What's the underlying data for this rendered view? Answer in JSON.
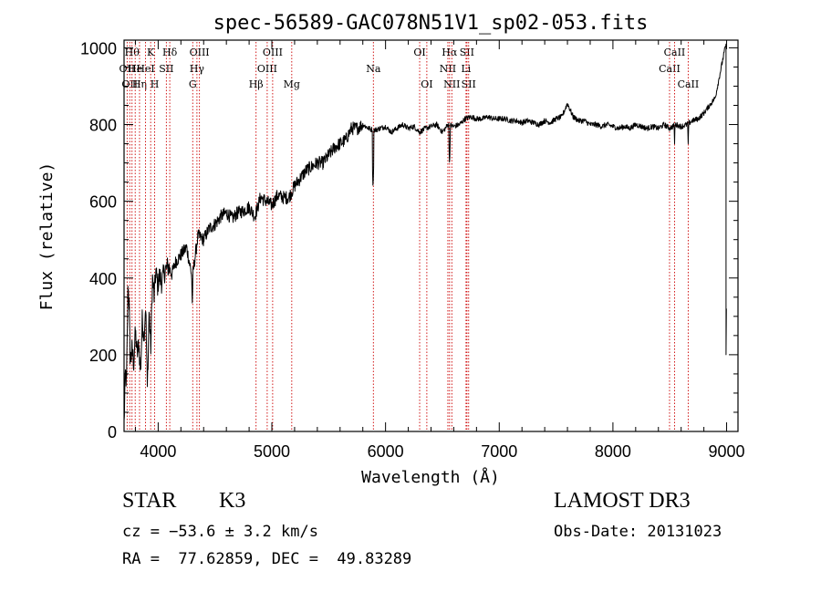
{
  "chart_data": {
    "type": "line",
    "title": "spec-56589-GAC078N51V1_sp02-053.fits",
    "xlabel": "Wavelength (Å)",
    "ylabel": "Flux (relative)",
    "xlim": [
      3700,
      9100
    ],
    "ylim": [
      0,
      1020
    ],
    "xticks": [
      4000,
      5000,
      6000,
      7000,
      8000,
      9000
    ],
    "yticks": [
      0,
      200,
      400,
      600,
      800,
      1000
    ],
    "series": [
      {
        "name": "spectrum",
        "x": [
          3700,
          3712,
          3722,
          3735,
          3745,
          3752,
          3760,
          3770,
          3785,
          3800,
          3815,
          3830,
          3845,
          3860,
          3875,
          3890,
          3905,
          3920,
          3935,
          3950,
          3965,
          3980,
          3995,
          4010,
          4030,
          4060,
          4090,
          4120,
          4150,
          4200,
          4250,
          4300,
          4350,
          4400,
          4450,
          4500,
          4550,
          4600,
          4650,
          4700,
          4750,
          4800,
          4850,
          4900,
          4950,
          5000,
          5050,
          5100,
          5150,
          5200,
          5250,
          5300,
          5350,
          5400,
          5450,
          5500,
          5550,
          5600,
          5650,
          5700,
          5750,
          5800,
          5850,
          5900,
          5950,
          6000,
          6050,
          6100,
          6150,
          6200,
          6250,
          6300,
          6350,
          6400,
          6450,
          6500,
          6550,
          6600,
          6650,
          6700,
          6750,
          6800,
          6850,
          6900,
          6950,
          7000,
          7050,
          7100,
          7150,
          7200,
          7250,
          7300,
          7350,
          7400,
          7450,
          7500,
          7550,
          7600,
          7650,
          7700,
          7750,
          7800,
          7850,
          7900,
          7950,
          8000,
          8050,
          8100,
          8150,
          8200,
          8250,
          8300,
          8350,
          8400,
          8450,
          8500,
          8550,
          8600,
          8650,
          8700,
          8750,
          8800,
          8850,
          8900,
          8920,
          8940,
          8960,
          8980,
          8995
        ],
        "y": [
          20,
          150,
          130,
          380,
          330,
          200,
          190,
          215,
          180,
          260,
          200,
          230,
          150,
          290,
          250,
          330,
          110,
          310,
          220,
          400,
          350,
          420,
          380,
          405,
          390,
          420,
          430,
          410,
          440,
          460,
          480,
          400,
          510,
          500,
          530,
          540,
          560,
          570,
          555,
          570,
          575,
          585,
          560,
          610,
          600,
          590,
          615,
          610,
          610,
          640,
          660,
          680,
          690,
          700,
          700,
          720,
          740,
          750,
          760,
          790,
          790,
          800,
          790,
          785,
          790,
          795,
          780,
          790,
          800,
          790,
          795,
          780,
          790,
          795,
          800,
          780,
          800,
          795,
          800,
          815,
          820,
          815,
          815,
          820,
          815,
          815,
          815,
          810,
          810,
          805,
          810,
          805,
          800,
          810,
          805,
          815,
          820,
          855,
          820,
          810,
          810,
          800,
          800,
          795,
          800,
          795,
          790,
          795,
          790,
          800,
          795,
          790,
          795,
          790,
          800,
          790,
          800,
          795,
          800,
          810,
          815,
          830,
          850,
          870,
          900,
          930,
          960,
          990,
          1010
        ]
      }
    ],
    "absorption_dips": [
      {
        "x": 5890,
        "y": 630
      },
      {
        "x": 6563,
        "y": 690
      },
      {
        "x": 4300,
        "y": 335
      },
      {
        "x": 8542,
        "y": 750
      },
      {
        "x": 8662,
        "y": 750
      }
    ],
    "line_markers": [
      {
        "x": 3727,
        "label": "OII",
        "row": 2
      },
      {
        "x": 3750,
        "label": "OII",
        "row": 3
      },
      {
        "x": 3770,
        "label": "Hθ",
        "row": 1
      },
      {
        "x": 3798,
        "label": "He",
        "row": 2
      },
      {
        "x": 3836,
        "label": "Hη",
        "row": 3
      },
      {
        "x": 3889,
        "label": "HeI",
        "row": 2
      },
      {
        "x": 3934,
        "label": "K",
        "row": 1
      },
      {
        "x": 3969,
        "label": "H",
        "row": 3
      },
      {
        "x": 4072,
        "label": "SII",
        "row": 2
      },
      {
        "x": 4102,
        "label": "Hδ",
        "row": 1
      },
      {
        "x": 4304,
        "label": "G",
        "row": 3
      },
      {
        "x": 4341,
        "label": "Hγ",
        "row": 2
      },
      {
        "x": 4363,
        "label": "OIII",
        "row": 1
      },
      {
        "x": 4861,
        "label": "Hβ",
        "row": 3
      },
      {
        "x": 4959,
        "label": "OIII",
        "row": 2
      },
      {
        "x": 5007,
        "label": "OIII",
        "row": 1
      },
      {
        "x": 5175,
        "label": "Mg",
        "row": 3
      },
      {
        "x": 5893,
        "label": "Na",
        "row": 2
      },
      {
        "x": 6300,
        "label": "OI",
        "row": 1
      },
      {
        "x": 6363,
        "label": "OI",
        "row": 3
      },
      {
        "x": 6548,
        "label": "NII",
        "row": 2
      },
      {
        "x": 6563,
        "label": "Hα",
        "row": 1
      },
      {
        "x": 6583,
        "label": "NII",
        "row": 3
      },
      {
        "x": 6716,
        "label": "SII",
        "row": 1
      },
      {
        "x": 6731,
        "label": "SII",
        "row": 3
      },
      {
        "x": 6708,
        "label": "Li",
        "row": 2
      },
      {
        "x": 8498,
        "label": "CaII",
        "row": 2
      },
      {
        "x": 8542,
        "label": "CaII",
        "row": 1
      },
      {
        "x": 8662,
        "label": "CaII",
        "row": 3
      }
    ],
    "grid": false,
    "legend": "none"
  },
  "info": {
    "object_class": "STAR",
    "subclass": "K3",
    "survey": "LAMOST DR3",
    "velocity": "cz = −53.6 ± 3.2 km/s",
    "obs_date": "Obs-Date: 20131023",
    "coordinates": "RA =  77.62859, DEC =  49.83289"
  }
}
